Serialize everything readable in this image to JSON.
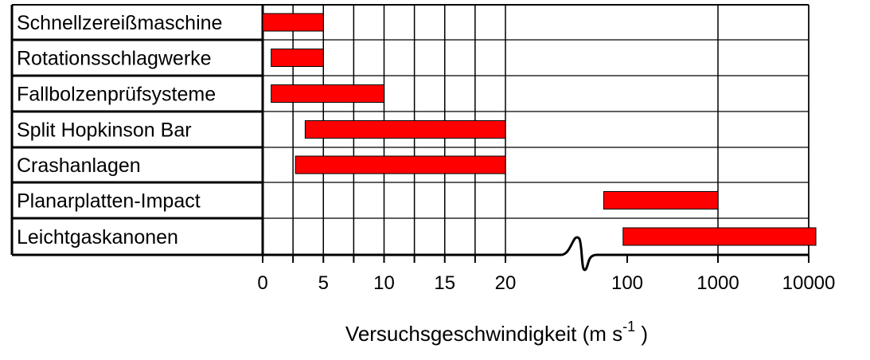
{
  "chart_data": {
    "type": "bar",
    "subtype": "range-bar (horizontal)",
    "categories": [
      "Schnellzereißmaschine",
      "Rotationsschlagwerke",
      "Fallbolzenprüfsysteme",
      "Split Hopkinson Bar",
      "Crashanlagen",
      "Planarplatten-Impact",
      "Leichtgaskanonen"
    ],
    "ranges": [
      [
        0,
        5
      ],
      [
        0.7,
        5
      ],
      [
        0.7,
        10
      ],
      [
        3.5,
        20
      ],
      [
        2.7,
        20
      ],
      [
        55,
        1000
      ],
      [
        90,
        12000
      ]
    ],
    "x_axis": {
      "label_prefix": "Versuchsgeschwindigkeit (m s",
      "label_exponent": "-1",
      "label_suffix": " )",
      "segments": [
        {
          "scale": "linear",
          "range": [
            0,
            20
          ],
          "ticks": [
            "0",
            "5",
            "10",
            "15",
            "20"
          ]
        },
        {
          "scale": "log",
          "range": [
            55,
            12000
          ],
          "ticks": [
            "100",
            "1000",
            "10000"
          ]
        }
      ],
      "axis_break": true
    },
    "bar_color": "#ff0000",
    "bar_edge_color": "#000000",
    "grid": true,
    "legend": "none"
  }
}
